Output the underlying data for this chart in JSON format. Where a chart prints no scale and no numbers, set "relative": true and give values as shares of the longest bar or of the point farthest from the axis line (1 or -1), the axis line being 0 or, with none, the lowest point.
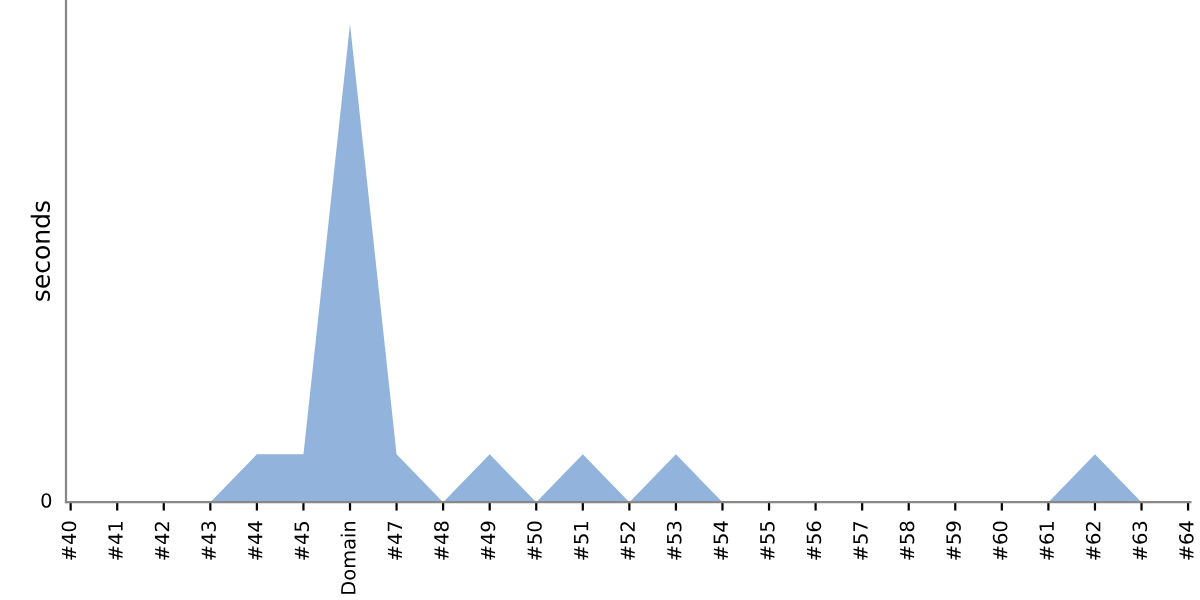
{
  "chart_data": {
    "type": "area",
    "ylabel": "seconds",
    "relative": true,
    "color": "#92b4dc",
    "annotations": [
      "0"
    ],
    "grid": false,
    "categories": [
      "#40",
      "#41",
      "#42",
      "#43",
      "#44",
      "#45",
      "Domain",
      "#47",
      "#48",
      "#49",
      "#50",
      "#51",
      "#52",
      "#53",
      "#54",
      "#55",
      "#56",
      "#57",
      "#58",
      "#59",
      "#60",
      "#61",
      "#62",
      "#63",
      "#64"
    ],
    "values": [
      0,
      0,
      0,
      0,
      0.1,
      0.1,
      1,
      0.1,
      0,
      0.1,
      0,
      0.1,
      0,
      0.1,
      0,
      0,
      0,
      0,
      0,
      0,
      0,
      0,
      0.1,
      0,
      0
    ]
  }
}
